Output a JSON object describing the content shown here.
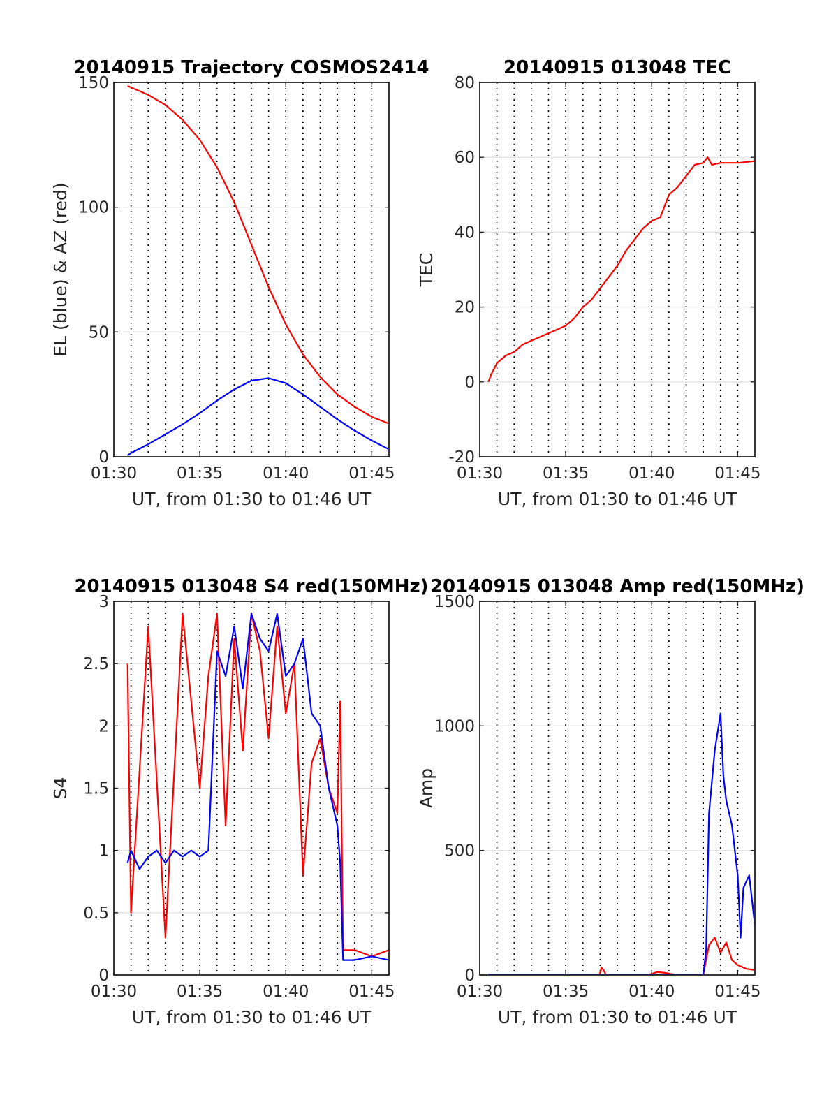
{
  "figure": {
    "background": "#ffffff",
    "series_colors": {
      "red": "#ff0000",
      "blue": "#0000ff"
    }
  },
  "chart_data": [
    {
      "type": "line",
      "title": "20140915 Trajectory COSMOS2414",
      "xlabel": "UT, from 01:30 to 01:46 UT",
      "ylabel": "EL (blue) & AZ (red)",
      "xlim": [
        "01:30",
        "01:46"
      ],
      "xticks": [
        "01:30",
        "01:35",
        "01:40",
        "01:45"
      ],
      "ylim": [
        0,
        150
      ],
      "yticks": [
        0,
        50,
        100,
        150
      ],
      "vlines": [
        "01:31",
        "01:32",
        "01:33",
        "01:34",
        "01:35",
        "01:36",
        "01:37",
        "01:38",
        "01:39",
        "01:40",
        "01:41",
        "01:42",
        "01:43",
        "01:44",
        "01:45"
      ],
      "series": [
        {
          "color": "#ff0000",
          "x": [
            "01:30:48",
            "01:31",
            "01:32",
            "01:33",
            "01:34",
            "01:35",
            "01:36",
            "01:37",
            "01:38",
            "01:39",
            "01:40",
            "01:41",
            "01:42",
            "01:43",
            "01:44",
            "01:45",
            "01:46"
          ],
          "values": [
            148.6,
            148,
            145,
            141,
            135,
            127,
            116,
            102,
            85,
            68,
            53,
            41,
            32,
            25,
            20,
            16,
            13.3
          ]
        },
        {
          "color": "#0000ff",
          "x": [
            "01:30:48",
            "01:31",
            "01:32",
            "01:33",
            "01:34",
            "01:35",
            "01:36",
            "01:37",
            "01:38",
            "01:39",
            "01:40",
            "01:41",
            "01:42",
            "01:43",
            "01:44",
            "01:45",
            "01:46"
          ],
          "values": [
            0.5,
            1.5,
            5,
            9,
            13,
            17.5,
            22.5,
            27,
            30.5,
            31.5,
            29.5,
            25,
            20,
            15,
            10.5,
            6.5,
            3
          ]
        }
      ]
    },
    {
      "type": "line",
      "title": "20140915 013048 TEC",
      "xlabel": "UT, from 01:30 to 01:46 UT",
      "ylabel": "TEC",
      "xlim": [
        "01:30",
        "01:46"
      ],
      "xticks": [
        "01:30",
        "01:35",
        "01:40",
        "01:45"
      ],
      "ylim": [
        -20,
        80
      ],
      "yticks": [
        -20,
        0,
        20,
        40,
        60,
        80
      ],
      "vlines": [
        "01:31",
        "01:32",
        "01:33",
        "01:34",
        "01:35",
        "01:36",
        "01:37",
        "01:38",
        "01:39",
        "01:40",
        "01:41",
        "01:42",
        "01:43",
        "01:44",
        "01:45"
      ],
      "series": [
        {
          "color": "#ff0000",
          "x": [
            "01:30:30",
            "01:30:40",
            "01:31",
            "01:31:30",
            "01:32",
            "01:32:30",
            "01:33",
            "01:33:30",
            "01:34",
            "01:34:30",
            "01:35",
            "01:35:30",
            "01:36",
            "01:36:30",
            "01:37",
            "01:37:30",
            "01:38",
            "01:38:30",
            "01:39",
            "01:39:30",
            "01:40",
            "01:40:30",
            "01:41",
            "01:41:30",
            "01:42",
            "01:42:30",
            "01:43",
            "01:43:15",
            "01:43:30",
            "01:44",
            "01:45",
            "01:46"
          ],
          "values": [
            0,
            2,
            5,
            7,
            8,
            10,
            11,
            12,
            13,
            14,
            15,
            17,
            20,
            22,
            25,
            28,
            31,
            35,
            38,
            41,
            43,
            44,
            50,
            52,
            55,
            58,
            58.5,
            60,
            58,
            58.5,
            58.5,
            59
          ]
        }
      ]
    },
    {
      "type": "line",
      "title": "20140915 013048 S4 red(150MHz)",
      "xlabel": "UT, from 01:30 to 01:46 UT",
      "ylabel": "S4",
      "xlim": [
        "01:30",
        "01:46"
      ],
      "xticks": [
        "01:30",
        "01:35",
        "01:40",
        "01:45"
      ],
      "ylim": [
        0,
        3
      ],
      "yticks": [
        0,
        0.5,
        1,
        1.5,
        2,
        2.5,
        3
      ],
      "vlines": [
        "01:31",
        "01:32",
        "01:33",
        "01:34",
        "01:35",
        "01:36",
        "01:37",
        "01:38",
        "01:39",
        "01:40",
        "01:41",
        "01:42",
        "01:43",
        "01:44",
        "01:45"
      ],
      "series": [
        {
          "color": "#ff0000",
          "x": [
            "01:30:48",
            "01:31",
            "01:32",
            "01:33",
            "01:34",
            "01:35",
            "01:35:30",
            "01:36",
            "01:36:30",
            "01:37",
            "01:37:30",
            "01:38",
            "01:38:30",
            "01:39",
            "01:39:30",
            "01:40",
            "01:40:30",
            "01:41",
            "01:41:30",
            "01:42",
            "01:42:30",
            "01:43",
            "01:43:10",
            "01:43:20",
            "01:44",
            "01:45",
            "01:46"
          ],
          "values": [
            2.5,
            0.5,
            2.8,
            0.3,
            2.9,
            1.5,
            2.4,
            2.9,
            1.2,
            2.7,
            1.8,
            2.9,
            2.6,
            1.9,
            2.8,
            2.1,
            2.5,
            0.8,
            1.7,
            1.9,
            1.5,
            1.3,
            2.2,
            0.2,
            0.2,
            0.15,
            0.2
          ]
        },
        {
          "color": "#0000ff",
          "x": [
            "01:30:48",
            "01:31",
            "01:31:30",
            "01:32",
            "01:32:30",
            "01:33",
            "01:33:30",
            "01:34",
            "01:34:30",
            "01:35",
            "01:35:30",
            "01:36",
            "01:36:30",
            "01:37",
            "01:37:30",
            "01:38",
            "01:38:30",
            "01:39",
            "01:39:30",
            "01:40",
            "01:40:30",
            "01:41",
            "01:41:30",
            "01:42",
            "01:42:30",
            "01:43",
            "01:43:10",
            "01:43:20",
            "01:44",
            "01:45",
            "01:46"
          ],
          "values": [
            0.9,
            1.0,
            0.85,
            0.95,
            1.0,
            0.9,
            1.0,
            0.95,
            1.0,
            0.95,
            1.0,
            2.6,
            2.4,
            2.8,
            2.3,
            2.9,
            2.7,
            2.6,
            2.9,
            2.4,
            2.5,
            2.7,
            2.1,
            2.0,
            1.5,
            1.2,
            0.9,
            0.12,
            0.12,
            0.15,
            0.12
          ]
        }
      ]
    },
    {
      "type": "line",
      "title": "20140915 013048 Amp red(150MHz)",
      "xlabel": "UT, from 01:30 to 01:46 UT",
      "ylabel": "Amp",
      "xlim": [
        "01:30",
        "01:46"
      ],
      "xticks": [
        "01:30",
        "01:35",
        "01:40",
        "01:45"
      ],
      "ylim": [
        0,
        1500
      ],
      "yticks": [
        0,
        500,
        1000,
        1500
      ],
      "vlines": [
        "01:31",
        "01:32",
        "01:33",
        "01:34",
        "01:35",
        "01:36",
        "01:37",
        "01:38",
        "01:39",
        "01:40",
        "01:41",
        "01:42",
        "01:43",
        "01:44",
        "01:45"
      ],
      "series": [
        {
          "color": "#ff0000",
          "x": [
            "01:30:30",
            "01:36:58",
            "01:37:05",
            "01:37:12",
            "01:37:20",
            "01:39:50",
            "01:40:20",
            "01:40:50",
            "01:41:20",
            "01:43:00",
            "01:43:20",
            "01:43:40",
            "01:44:00",
            "01:44:20",
            "01:44:40",
            "01:45:00",
            "01:45:30",
            "01:46"
          ],
          "values": [
            1,
            1,
            30,
            20,
            1,
            1,
            12,
            8,
            1,
            1,
            120,
            150,
            90,
            130,
            60,
            40,
            25,
            20
          ]
        },
        {
          "color": "#0000ff",
          "x": [
            "01:30:30",
            "01:43:00",
            "01:43:10",
            "01:43:20",
            "01:43:40",
            "01:44:00",
            "01:44:10",
            "01:44:20",
            "01:44:40",
            "01:45:00",
            "01:45:10",
            "01:45:20",
            "01:45:40",
            "01:46"
          ],
          "values": [
            1,
            1,
            100,
            650,
            900,
            1050,
            800,
            700,
            600,
            400,
            150,
            350,
            400,
            200
          ]
        }
      ]
    }
  ]
}
